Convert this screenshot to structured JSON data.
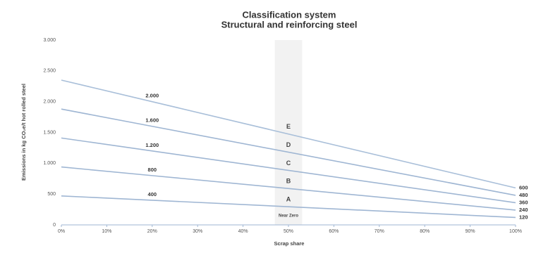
{
  "chart_data": {
    "type": "line",
    "title": "Classification system",
    "subtitle": "Structural and reinforcing steel",
    "x_label": "Scrap share",
    "y_label": "Emissions in kg CO₂e/t hot rolled steel",
    "x": [
      0,
      20,
      100
    ],
    "series": [
      {
        "color": "#a9bfd9",
        "values": [
          2350,
          2000,
          600
        ],
        "value_labels": [
          null,
          "2.000",
          "600"
        ]
      },
      {
        "color": "#9fb6d3",
        "values": [
          1880,
          1600,
          480
        ],
        "value_labels": [
          null,
          "1.600",
          "480"
        ]
      },
      {
        "color": "#9fb6d3",
        "values": [
          1410,
          1200,
          360
        ],
        "value_labels": [
          null,
          "1.200",
          "360"
        ]
      },
      {
        "color": "#9fb6d3",
        "values": [
          940,
          800,
          240
        ],
        "value_labels": [
          null,
          "800",
          "240"
        ]
      },
      {
        "color": "#9fb6d3",
        "values": [
          470,
          400,
          120
        ],
        "value_labels": [
          null,
          "400",
          "120"
        ]
      }
    ],
    "class_labels": [
      "E",
      "D",
      "C",
      "B",
      "A",
      "Near Zero"
    ],
    "highlight_xrange": [
      47,
      53
    ],
    "xlim": [
      0,
      100
    ],
    "xticks": [
      {
        "value": 0,
        "label": "0%"
      },
      {
        "value": 10,
        "label": "10%"
      },
      {
        "value": 20,
        "label": "20%"
      },
      {
        "value": 30,
        "label": "30%"
      },
      {
        "value": 40,
        "label": "40%"
      },
      {
        "value": 50,
        "label": "50%"
      },
      {
        "value": 60,
        "label": "60%"
      },
      {
        "value": 70,
        "label": "70%"
      },
      {
        "value": 80,
        "label": "80%"
      },
      {
        "value": 90,
        "label": "90%"
      },
      {
        "value": 100,
        "label": "100%"
      }
    ],
    "ylim": [
      0,
      3000
    ],
    "yticks": [
      0,
      500,
      {
        "value": 1000,
        "label": "1.000"
      },
      {
        "value": 1500,
        "label": "1.500"
      },
      {
        "value": 2000,
        "label": "2.000"
      },
      {
        "value": 2500,
        "label": "2.500"
      },
      {
        "value": 3000,
        "label": "3.000"
      }
    ],
    "grid": false
  }
}
